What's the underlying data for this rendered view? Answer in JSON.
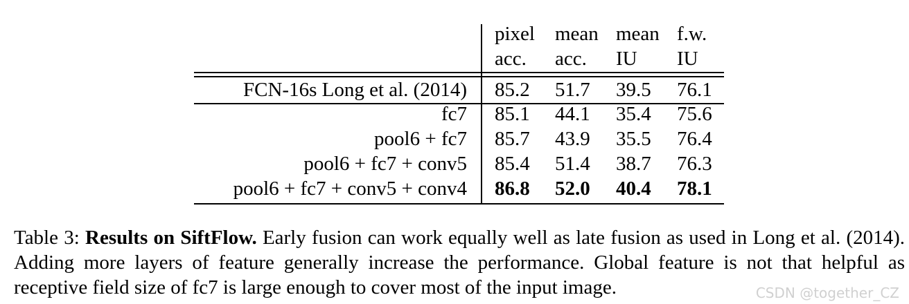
{
  "table": {
    "columns": [
      [
        "pixel",
        "acc."
      ],
      [
        "mean",
        "acc."
      ],
      [
        "mean",
        "IU"
      ],
      [
        "f.w.",
        "IU"
      ]
    ],
    "rows": [
      {
        "label": "FCN-16s Long et al. (2014)",
        "values": [
          "85.2",
          "51.7",
          "39.5",
          "76.1"
        ],
        "bold": false
      },
      {
        "label": "fc7",
        "values": [
          "85.1",
          "44.1",
          "35.4",
          "75.6"
        ],
        "bold": false
      },
      {
        "label": "pool6 + fc7",
        "values": [
          "85.7",
          "43.9",
          "35.5",
          "76.4"
        ],
        "bold": false
      },
      {
        "label": "pool6 + fc7 + conv5",
        "values": [
          "85.4",
          "51.4",
          "38.7",
          "76.3"
        ],
        "bold": false
      },
      {
        "label": "pool6 + fc7 + conv5 + conv4",
        "values": [
          "86.8",
          "52.0",
          "40.4",
          "78.1"
        ],
        "bold": true
      }
    ]
  },
  "caption": {
    "number": "Table 3:",
    "title": "Results on SiftFlow.",
    "text": "Early fusion can work equally well as late fusion as used in Long et al. (2014). Adding more layers of feature generally increase the performance. Global feature is not that helpful as receptive field size of fc7 is large enough to cover most of the input image."
  },
  "watermark": "CSDN @together_CZ"
}
